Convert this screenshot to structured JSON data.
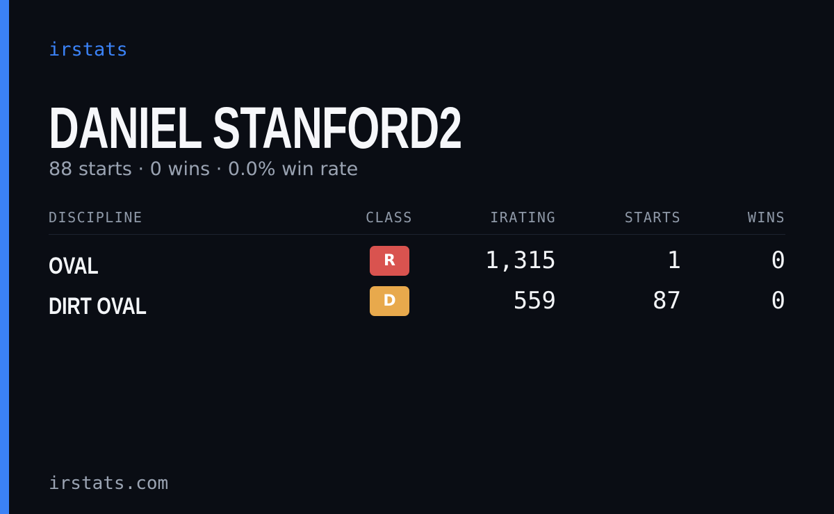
{
  "brand": "irstats",
  "driver": {
    "name": "DANIEL STANFORD2",
    "summary": "88 starts · 0 wins · 0.0% win rate"
  },
  "table": {
    "headers": [
      "DISCIPLINE",
      "CLASS",
      "IRATING",
      "STARTS",
      "WINS"
    ],
    "rows": [
      {
        "discipline": "OVAL",
        "class": "R",
        "class_color": "#d9534f",
        "irating": "1,315",
        "starts": "1",
        "wins": "0"
      },
      {
        "discipline": "DIRT OVAL",
        "class": "D",
        "class_color": "#e8a94c",
        "irating": "559",
        "starts": "87",
        "wins": "0"
      }
    ]
  },
  "footer": "irstats.com"
}
